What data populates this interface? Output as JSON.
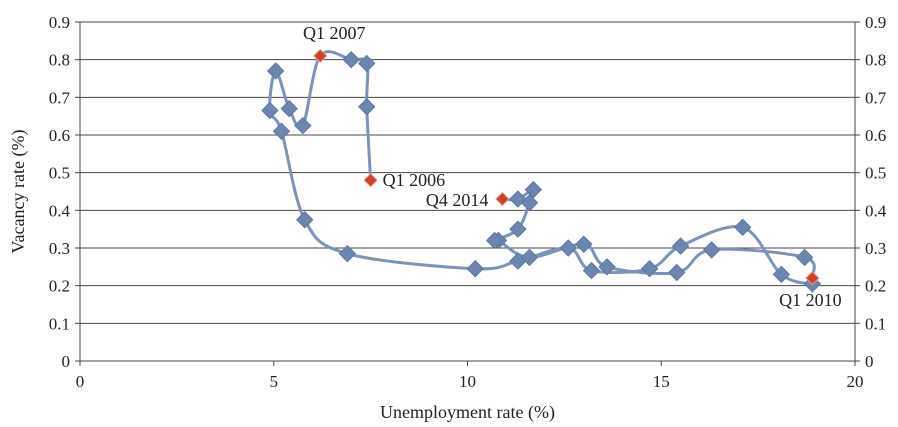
{
  "chart_data": {
    "type": "scatter",
    "xlabel": "Unemployment rate (%)",
    "ylabel": "Vacancy rate (%)",
    "xlim": [
      0,
      20
    ],
    "ylim": [
      0,
      0.9
    ],
    "y2lim": [
      0,
      0.9
    ],
    "x_ticks": [
      "0",
      "5",
      "10",
      "15",
      "20"
    ],
    "y_ticks": [
      "0",
      "0.1",
      "0.2",
      "0.3",
      "0.4",
      "0.5",
      "0.6",
      "0.7",
      "0.8",
      "0.9"
    ],
    "grid": "horizontal",
    "legend": "none",
    "colors": {
      "line": "#7a93b8",
      "marker": "#6b86b0",
      "highlight": "#cc4127",
      "grid": "#444444"
    },
    "series": [
      {
        "values": [
          {
            "x": 7.5,
            "y": 0.48
          },
          {
            "x": 7.4,
            "y": 0.675
          },
          {
            "x": 7.4,
            "y": 0.79
          },
          {
            "x": 7.0,
            "y": 0.8
          },
          {
            "x": 6.2,
            "y": 0.81
          },
          {
            "x": 5.75,
            "y": 0.625
          },
          {
            "x": 5.4,
            "y": 0.67
          },
          {
            "x": 5.05,
            "y": 0.77
          },
          {
            "x": 4.9,
            "y": 0.665
          },
          {
            "x": 5.2,
            "y": 0.61
          },
          {
            "x": 5.8,
            "y": 0.375
          },
          {
            "x": 6.9,
            "y": 0.285
          },
          {
            "x": 10.2,
            "y": 0.245
          },
          {
            "x": 11.3,
            "y": 0.265
          },
          {
            "x": 12.6,
            "y": 0.3
          },
          {
            "x": 13.2,
            "y": 0.24
          },
          {
            "x": 14.7,
            "y": 0.245
          },
          {
            "x": 15.5,
            "y": 0.305
          },
          {
            "x": 17.1,
            "y": 0.355
          },
          {
            "x": 18.1,
            "y": 0.23
          },
          {
            "x": 18.9,
            "y": 0.205
          },
          {
            "x": 18.9,
            "y": 0.22
          },
          {
            "x": 18.7,
            "y": 0.275
          },
          {
            "x": 16.3,
            "y": 0.295
          },
          {
            "x": 15.4,
            "y": 0.235
          },
          {
            "x": 13.6,
            "y": 0.25
          },
          {
            "x": 13.0,
            "y": 0.31
          },
          {
            "x": 11.6,
            "y": 0.275
          },
          {
            "x": 10.8,
            "y": 0.32
          },
          {
            "x": 10.7,
            "y": 0.32
          },
          {
            "x": 11.3,
            "y": 0.35
          },
          {
            "x": 11.6,
            "y": 0.42
          },
          {
            "x": 11.7,
            "y": 0.455
          },
          {
            "x": 11.3,
            "y": 0.43
          },
          {
            "x": 10.9,
            "y": 0.43
          }
        ]
      }
    ],
    "annotations": [
      {
        "text": "Q1 2006",
        "x": 7.5,
        "y": 0.48
      },
      {
        "text": "Q1 2007",
        "x": 6.2,
        "y": 0.81
      },
      {
        "text": "Q4 2014",
        "x": 10.9,
        "y": 0.43
      },
      {
        "text": "Q1 2010",
        "x": 18.9,
        "y": 0.22
      }
    ]
  }
}
